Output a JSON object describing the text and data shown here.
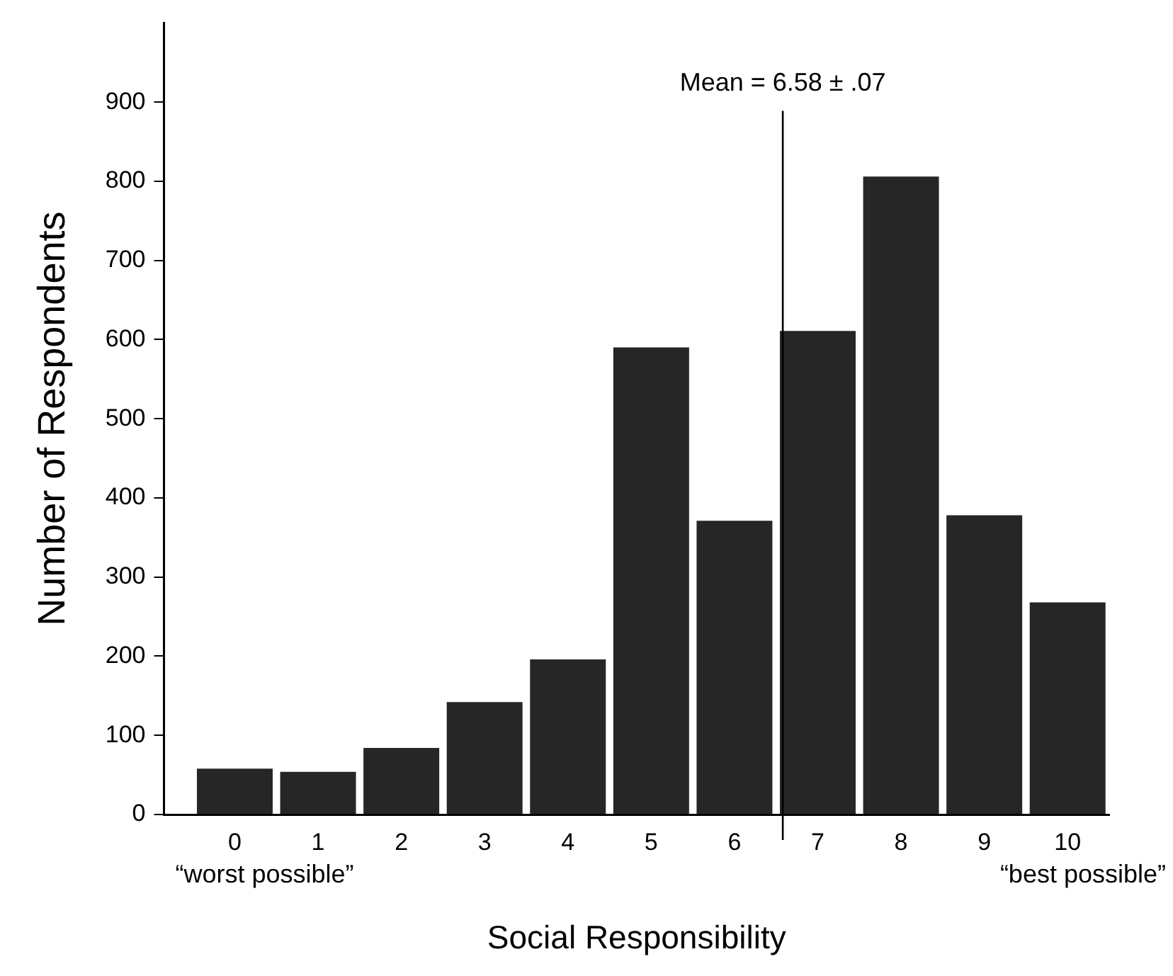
{
  "chart_data": {
    "type": "bar",
    "x": [
      0,
      1,
      2,
      3,
      4,
      5,
      6,
      7,
      8,
      9,
      10
    ],
    "values": [
      58,
      54,
      84,
      142,
      196,
      590,
      371,
      611,
      806,
      378,
      268
    ],
    "color": "#262626",
    "xlabel": "Social Responsibility",
    "ylabel": "Number of Respondents",
    "xlim": [
      -0.85,
      10.5
    ],
    "xticks": [
      0,
      1,
      2,
      3,
      4,
      5,
      6,
      7,
      8,
      9,
      10
    ],
    "ylim": [
      0,
      1000
    ],
    "yticks": [
      0,
      100,
      200,
      300,
      400,
      500,
      600,
      700,
      800,
      900
    ],
    "ref_lines": [
      {
        "axis": "x",
        "value": 6.58,
        "label": "Mean = 6.58 ± .07",
        "color": "#000000"
      }
    ],
    "annotations": [
      "“worst possible”",
      "“best possible”"
    ]
  }
}
